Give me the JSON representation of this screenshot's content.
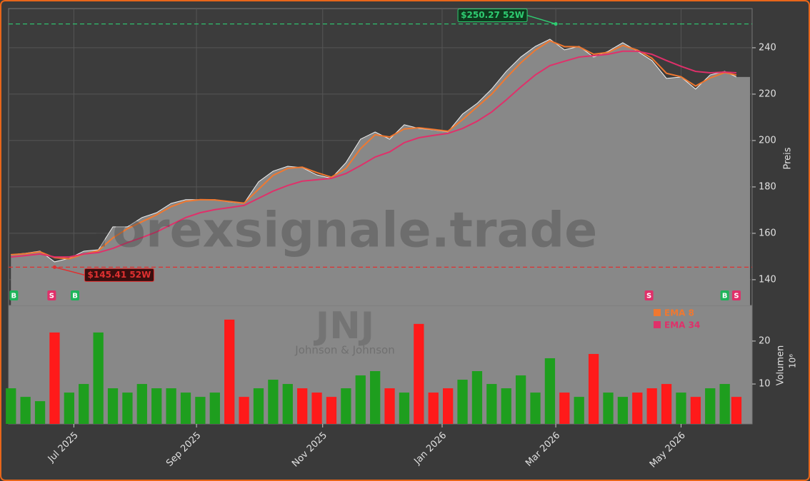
{
  "chart_data": {
    "type": "stock",
    "symbol": "JNJ",
    "company": "Johnson & Johnson",
    "watermark": "forexsignale.trade",
    "y_label": "Preis",
    "volume_label": "Volumen",
    "volume_unit": "10⁶",
    "x": [
      0,
      5,
      10,
      15,
      20,
      25,
      30,
      35,
      40,
      45,
      50,
      55,
      60,
      65,
      70,
      75,
      80,
      85,
      90,
      95,
      100,
      105,
      110,
      115,
      120,
      125,
      130,
      135,
      140,
      145,
      150,
      155,
      160,
      165,
      170,
      175,
      180,
      185,
      190,
      195,
      200,
      205,
      210,
      215,
      220,
      225,
      230,
      235,
      240,
      245,
      249
    ],
    "close": [
      150.8,
      151.4,
      152.3,
      147.7,
      149.2,
      152.3,
      152.9,
      162.8,
      162.8,
      166.8,
      168.9,
      172.9,
      174.5,
      174.5,
      174.5,
      173.5,
      172.9,
      182.2,
      186.8,
      188.9,
      188.3,
      185.2,
      183.7,
      190.5,
      200.6,
      203.7,
      200.6,
      206.8,
      205.2,
      204.6,
      203.7,
      211.4,
      216.0,
      222.2,
      229.8,
      236.0,
      240.6,
      243.7,
      239.1,
      240.6,
      236.0,
      238.5,
      242.2,
      238.5,
      234.5,
      226.8,
      227.4,
      222.2,
      228.3,
      229.8,
      227.4
    ],
    "series": [
      {
        "name": "EMA 8",
        "color": "#f07830",
        "values": [
          150.8,
          151.2,
          152.0,
          149.5,
          149.0,
          151.0,
          152.5,
          158.0,
          162.0,
          165.0,
          168.0,
          171.5,
          173.8,
          174.5,
          174.4,
          173.7,
          173.0,
          179.0,
          185.0,
          188.0,
          188.5,
          186.2,
          184.2,
          188.0,
          196.5,
          202.5,
          201.5,
          205.0,
          205.5,
          204.8,
          204.0,
          209.0,
          214.5,
          220.0,
          227.0,
          233.5,
          239.0,
          243.0,
          240.5,
          240.4,
          237.2,
          238.0,
          241.0,
          239.0,
          235.5,
          229.0,
          227.5,
          223.5,
          227.0,
          229.3,
          228.2
        ]
      },
      {
        "name": "EMA 34",
        "color": "#e0306a",
        "values": [
          149.8,
          150.4,
          151.1,
          149.8,
          149.8,
          151.1,
          151.7,
          153.5,
          156.0,
          158.2,
          160.6,
          163.7,
          166.8,
          168.9,
          170.2,
          171.1,
          172.0,
          175.1,
          178.2,
          180.6,
          182.5,
          183.1,
          183.7,
          185.8,
          189.2,
          192.9,
          195.1,
          199.1,
          201.2,
          202.2,
          203.1,
          205.2,
          208.3,
          212.3,
          217.5,
          223.1,
          228.3,
          232.3,
          234.2,
          236.0,
          236.6,
          237.2,
          238.5,
          238.5,
          237.2,
          234.5,
          232.0,
          229.8,
          229.2,
          229.5,
          229.2
        ]
      }
    ],
    "volume": [
      9,
      7,
      6,
      22,
      8,
      10,
      22,
      9,
      8,
      10,
      9,
      9,
      8,
      7,
      8,
      25,
      7,
      9,
      11,
      10,
      9,
      8,
      7,
      9,
      12,
      13,
      9,
      8,
      24,
      8,
      9,
      11,
      13,
      10,
      9,
      12,
      8,
      16,
      8,
      7,
      17,
      8,
      7,
      8,
      9,
      10,
      8,
      7,
      9,
      10,
      7
    ],
    "up_color": "#1e9e1e",
    "down_color": "#ff1a1a",
    "xlim": [
      -0.8,
      254.4
    ],
    "xticks": [
      {
        "value": 21.6,
        "label": "Jul 2025"
      },
      {
        "value": 63.7,
        "label": "Sep 2025"
      },
      {
        "value": 107,
        "label": "Nov 2025"
      },
      {
        "value": 148,
        "label": "Jan 2026"
      },
      {
        "value": 187,
        "label": "Mar 2026"
      },
      {
        "value": 230,
        "label": "May 2026"
      }
    ],
    "ylim": [
      128.9,
      256.9
    ],
    "yticks": [
      140,
      160,
      180,
      200,
      220,
      240
    ],
    "volume_lim": [
      0.7,
      28.3
    ],
    "volume_ticks": [
      10,
      20
    ],
    "grid": true,
    "annotations": [
      {
        "value": 250.27,
        "label": "$250.27 52W",
        "x": 187,
        "color": "#2ecc71"
      },
      {
        "value": 145.41,
        "label": "$145.41 52W",
        "x": 15,
        "color": "#e03030"
      }
    ],
    "signals": [
      {
        "x": 1,
        "label": "B"
      },
      {
        "x": 14,
        "label": "S"
      },
      {
        "x": 22,
        "label": "B"
      },
      {
        "x": 219,
        "label": "S"
      },
      {
        "x": 245,
        "label": "B"
      },
      {
        "x": 249,
        "label": "S"
      }
    ]
  }
}
